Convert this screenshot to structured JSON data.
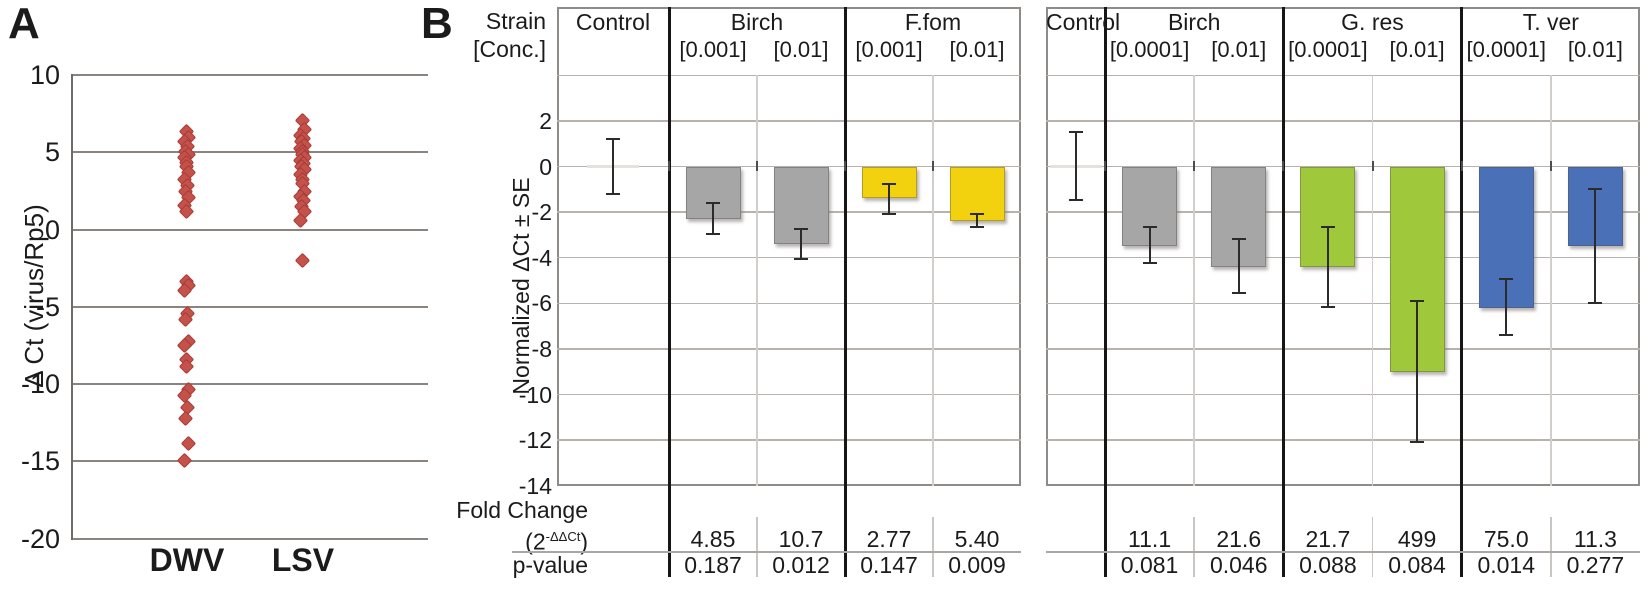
{
  "figure": {
    "panelA": {
      "label": "A",
      "y_axis_label": "Δ Ct (virus/Rp5)"
    },
    "panelB": {
      "label": "B",
      "header_row1": "Strain",
      "header_row2": "[Conc.]",
      "y_axis_label": "Normalized ΔCt ± SE",
      "fold_change_label": "Fold Change",
      "fold_formula_open": "(2",
      "fold_formula_sup": "-ΔΔCt",
      "fold_formula_close": ")",
      "p_value_label": "p-value"
    },
    "colors": {
      "scatter_marker": "#C5514B",
      "bar_gray": "#A6A6A6",
      "bar_yellow": "#F2D10E",
      "bar_green": "#A0C83B",
      "bar_blue": "#4A70B8",
      "gridline": "#8a8480",
      "divider_black": "#161616"
    }
  },
  "chart_data": [
    {
      "type": "scatter",
      "panel": "A",
      "title": "",
      "xlabel": "",
      "ylabel": "Δ Ct (virus/Rp5)",
      "ylim": [
        -20,
        10
      ],
      "yticks": [
        10,
        5,
        0,
        -5,
        -10,
        -15,
        -20
      ],
      "grid": true,
      "marker": "diamond",
      "marker_color": "#C5514B",
      "categories": [
        "DWV",
        "LSV"
      ],
      "series": [
        {
          "name": "DWV",
          "values": [
            6.3,
            5.9,
            5.6,
            5.3,
            5.0,
            4.8,
            4.6,
            4.3,
            4.0,
            3.6,
            3.2,
            2.8,
            2.4,
            2.0,
            1.5,
            1.1,
            -3.4,
            -3.7,
            -4.0,
            -5.5,
            -5.9,
            -7.3,
            -7.6,
            -8.5,
            -8.9,
            -10.4,
            -10.8,
            -11.6,
            -12.3,
            -13.9,
            -15.0
          ]
        },
        {
          "name": "LSV",
          "values": [
            7.0,
            6.4,
            6.0,
            5.8,
            5.6,
            5.4,
            5.2,
            5.0,
            4.8,
            4.6,
            4.4,
            4.2,
            4.0,
            3.8,
            3.5,
            3.2,
            2.9,
            2.4,
            2.1,
            1.8,
            1.4,
            1.1,
            0.5,
            -2.1
          ]
        }
      ]
    },
    {
      "type": "bar",
      "panel": "B-left",
      "title": "",
      "ylabel": "Normalized ΔCt ± SE",
      "ylim": [
        -14,
        4
      ],
      "yticks": [
        2,
        0,
        -2,
        -4,
        -6,
        -8,
        -10,
        -12,
        -14
      ],
      "grid": true,
      "groups": [
        {
          "strain": "Control",
          "columns": [
            {
              "conc": "",
              "value": 0,
              "se_up": 1.2,
              "se_down": 1.2,
              "control": true
            }
          ]
        },
        {
          "strain": "Birch",
          "columns": [
            {
              "conc": "[0.001]",
              "value": -2.3,
              "se_up": 0.7,
              "se_down": 0.65,
              "color": "#A6A6A6",
              "fold_change": "4.85",
              "p_value": "0.187"
            },
            {
              "conc": "[0.01]",
              "value": -3.4,
              "se_up": 0.65,
              "se_down": 0.65,
              "color": "#A6A6A6",
              "fold_change": "10.7",
              "p_value": "0.012"
            }
          ]
        },
        {
          "strain": "F.fom",
          "columns": [
            {
              "conc": "[0.001]",
              "value": -1.4,
              "se_up": 0.65,
              "se_down": 0.7,
              "color": "#F2D10E",
              "fold_change": "2.77",
              "p_value": "0.147"
            },
            {
              "conc": "[0.01]",
              "value": -2.4,
              "se_up": 0.3,
              "se_down": 0.25,
              "color": "#F2D10E",
              "fold_change": "5.40",
              "p_value": "0.009"
            }
          ]
        }
      ]
    },
    {
      "type": "bar",
      "panel": "B-right",
      "title": "",
      "ylabel": "Normalized ΔCt ± SE",
      "ylim": [
        -14,
        4
      ],
      "yticks": [
        2,
        0,
        -2,
        -4,
        -6,
        -8,
        -10,
        -12,
        -14
      ],
      "grid": true,
      "groups": [
        {
          "strain": "Control",
          "columns": [
            {
              "conc": "",
              "value": 0,
              "se_up": 1.5,
              "se_down": 1.45,
              "control": true
            }
          ]
        },
        {
          "strain": "Birch",
          "columns": [
            {
              "conc": "[0.0001]",
              "value": -3.5,
              "se_up": 0.85,
              "se_down": 0.75,
              "color": "#A6A6A6",
              "fold_change": "11.1",
              "p_value": "0.081"
            },
            {
              "conc": "[0.01]",
              "value": -4.4,
              "se_up": 1.2,
              "se_down": 1.15,
              "color": "#A6A6A6",
              "fold_change": "21.6",
              "p_value": "0.046"
            }
          ]
        },
        {
          "strain": "G. res",
          "columns": [
            {
              "conc": "[0.0001]",
              "value": -4.4,
              "se_up": 1.75,
              "se_down": 1.75,
              "color": "#A0C83B",
              "fold_change": "21.7",
              "p_value": "0.088"
            },
            {
              "conc": "[0.01]",
              "value": -9.0,
              "se_up": 3.1,
              "se_down": 3.1,
              "color": "#A0C83B",
              "fold_change": "499",
              "p_value": "0.084"
            }
          ]
        },
        {
          "strain": "T. ver",
          "columns": [
            {
              "conc": "[0.0001]",
              "value": -6.2,
              "se_up": 1.25,
              "se_down": 1.2,
              "color": "#4A70B8",
              "fold_change": "75.0",
              "p_value": "0.014"
            },
            {
              "conc": "[0.01]",
              "value": -3.5,
              "se_up": 2.5,
              "se_down": 2.5,
              "color": "#4A70B8",
              "fold_change": "11.3",
              "p_value": "0.277"
            }
          ]
        }
      ]
    }
  ]
}
